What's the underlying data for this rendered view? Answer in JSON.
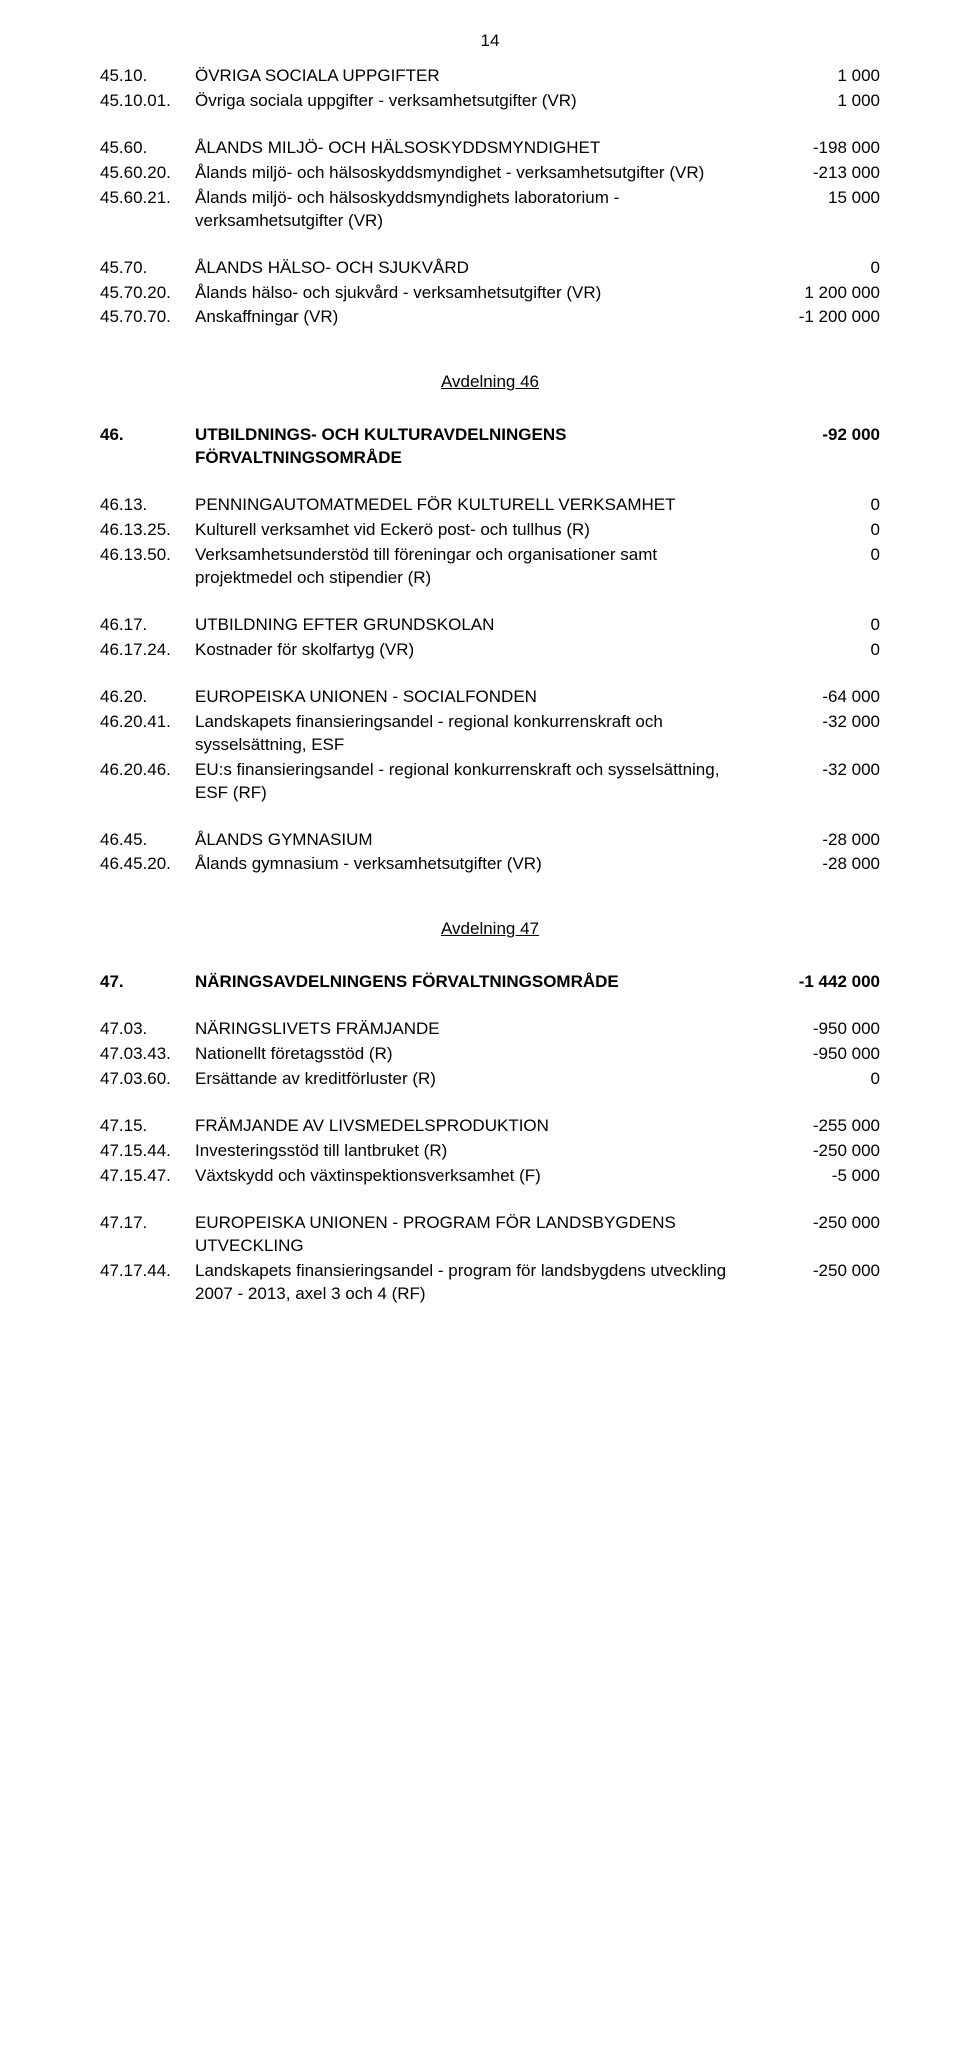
{
  "page_number": "14",
  "groups": [
    {
      "type": "row",
      "code": "45.10.",
      "label": "ÖVRIGA SOCIALA UPPGIFTER",
      "value": "1 000"
    },
    {
      "type": "row",
      "code": "45.10.01.",
      "label": "Övriga sociala uppgifter - verksamhetsutgifter (VR)",
      "value": "1 000"
    },
    {
      "type": "gap",
      "size": "md"
    },
    {
      "type": "row",
      "code": "45.60.",
      "label": "ÅLANDS MILJÖ- OCH HÄLSOSKYDDSMYNDIGHET",
      "value": "-198 000"
    },
    {
      "type": "row",
      "code": "45.60.20.",
      "label": "Ålands miljö- och hälsoskyddsmyndighet - verksamhetsutgifter (VR)",
      "value": "-213 000"
    },
    {
      "type": "row",
      "code": "45.60.21.",
      "label": "Ålands miljö- och hälsoskyddsmyndighets laboratorium - verksamhetsutgifter (VR)",
      "value": "15 000"
    },
    {
      "type": "gap",
      "size": "md"
    },
    {
      "type": "row",
      "code": "45.70.",
      "label": "ÅLANDS HÄLSO- OCH SJUKVÅRD",
      "value": "0"
    },
    {
      "type": "row",
      "code": "45.70.20.",
      "label": "Ålands hälso- och sjukvård - verksamhetsutgifter (VR)",
      "value": "1 200 000"
    },
    {
      "type": "row",
      "code": "45.70.70.",
      "label": "Anskaffningar (VR)",
      "value": "-1 200 000"
    },
    {
      "type": "avdelning",
      "label": "Avdelning 46"
    },
    {
      "type": "row",
      "bold": true,
      "code": "46.",
      "label": "UTBILDNINGS- OCH KULTURAVDELNINGENS FÖRVALTNINGSOMRÅDE",
      "value": "-92 000"
    },
    {
      "type": "gap",
      "size": "md"
    },
    {
      "type": "row",
      "code": "46.13.",
      "label": "PENNINGAUTOMATMEDEL FÖR KULTURELL VERKSAMHET",
      "value": "0"
    },
    {
      "type": "row",
      "code": "46.13.25.",
      "label": "Kulturell verksamhet vid Eckerö post- och tullhus (R)",
      "value": "0"
    },
    {
      "type": "row",
      "code": "46.13.50.",
      "label": "Verksamhetsunderstöd till föreningar och organisationer samt projektmedel och stipendier (R)",
      "value": "0"
    },
    {
      "type": "gap",
      "size": "md"
    },
    {
      "type": "row",
      "code": "46.17.",
      "label": "UTBILDNING EFTER GRUNDSKOLAN",
      "value": "0"
    },
    {
      "type": "row",
      "code": "46.17.24.",
      "label": "Kostnader för skolfartyg (VR)",
      "value": "0"
    },
    {
      "type": "gap",
      "size": "md"
    },
    {
      "type": "row",
      "code": "46.20.",
      "label": "EUROPEISKA UNIONEN - SOCIALFONDEN",
      "value": "-64 000"
    },
    {
      "type": "row",
      "code": "46.20.41.",
      "label": "Landskapets finansieringsandel - regional konkurrenskraft och sysselsättning, ESF",
      "value": "-32 000"
    },
    {
      "type": "row",
      "code": "46.20.46.",
      "label": "EU:s finansieringsandel - regional konkurrenskraft och sysselsättning, ESF (RF)",
      "value": "-32 000"
    },
    {
      "type": "gap",
      "size": "md"
    },
    {
      "type": "row",
      "code": "46.45.",
      "label": "ÅLANDS GYMNASIUM",
      "value": "-28 000"
    },
    {
      "type": "row",
      "code": "46.45.20.",
      "label": "Ålands gymnasium - verksamhetsutgifter (VR)",
      "value": "-28 000"
    },
    {
      "type": "avdelning",
      "label": "Avdelning 47"
    },
    {
      "type": "row",
      "bold": true,
      "code": "47.",
      "label": "NÄRINGSAVDELNINGENS FÖRVALTNINGSOMRÅDE",
      "value": "-1 442 000"
    },
    {
      "type": "gap",
      "size": "md"
    },
    {
      "type": "row",
      "code": "47.03.",
      "label": "NÄRINGSLIVETS FRÄMJANDE",
      "value": "-950 000"
    },
    {
      "type": "row",
      "code": "47.03.43.",
      "label": "Nationellt företagsstöd (R)",
      "value": "-950 000"
    },
    {
      "type": "row",
      "code": "47.03.60.",
      "label": "Ersättande av kreditförluster (R)",
      "value": "0"
    },
    {
      "type": "gap",
      "size": "md"
    },
    {
      "type": "row",
      "code": "47.15.",
      "label": "FRÄMJANDE AV LIVSMEDELSPRODUKTION",
      "value": "-255 000"
    },
    {
      "type": "row",
      "code": "47.15.44.",
      "label": "Investeringsstöd till lantbruket (R)",
      "value": "-250 000"
    },
    {
      "type": "row",
      "code": "47.15.47.",
      "label": "Växtskydd och växtinspektionsverksamhet (F)",
      "value": "-5 000"
    },
    {
      "type": "gap",
      "size": "md"
    },
    {
      "type": "row",
      "code": "47.17.",
      "label": "EUROPEISKA UNIONEN - PROGRAM FÖR LANDSBYGDENS UTVECKLING",
      "value": "-250 000"
    },
    {
      "type": "row",
      "code": "47.17.44.",
      "label": "Landskapets finansieringsandel - program för landsbygdens utveckling 2007 - 2013, axel 3 och 4 (RF)",
      "value": "-250 000"
    }
  ]
}
